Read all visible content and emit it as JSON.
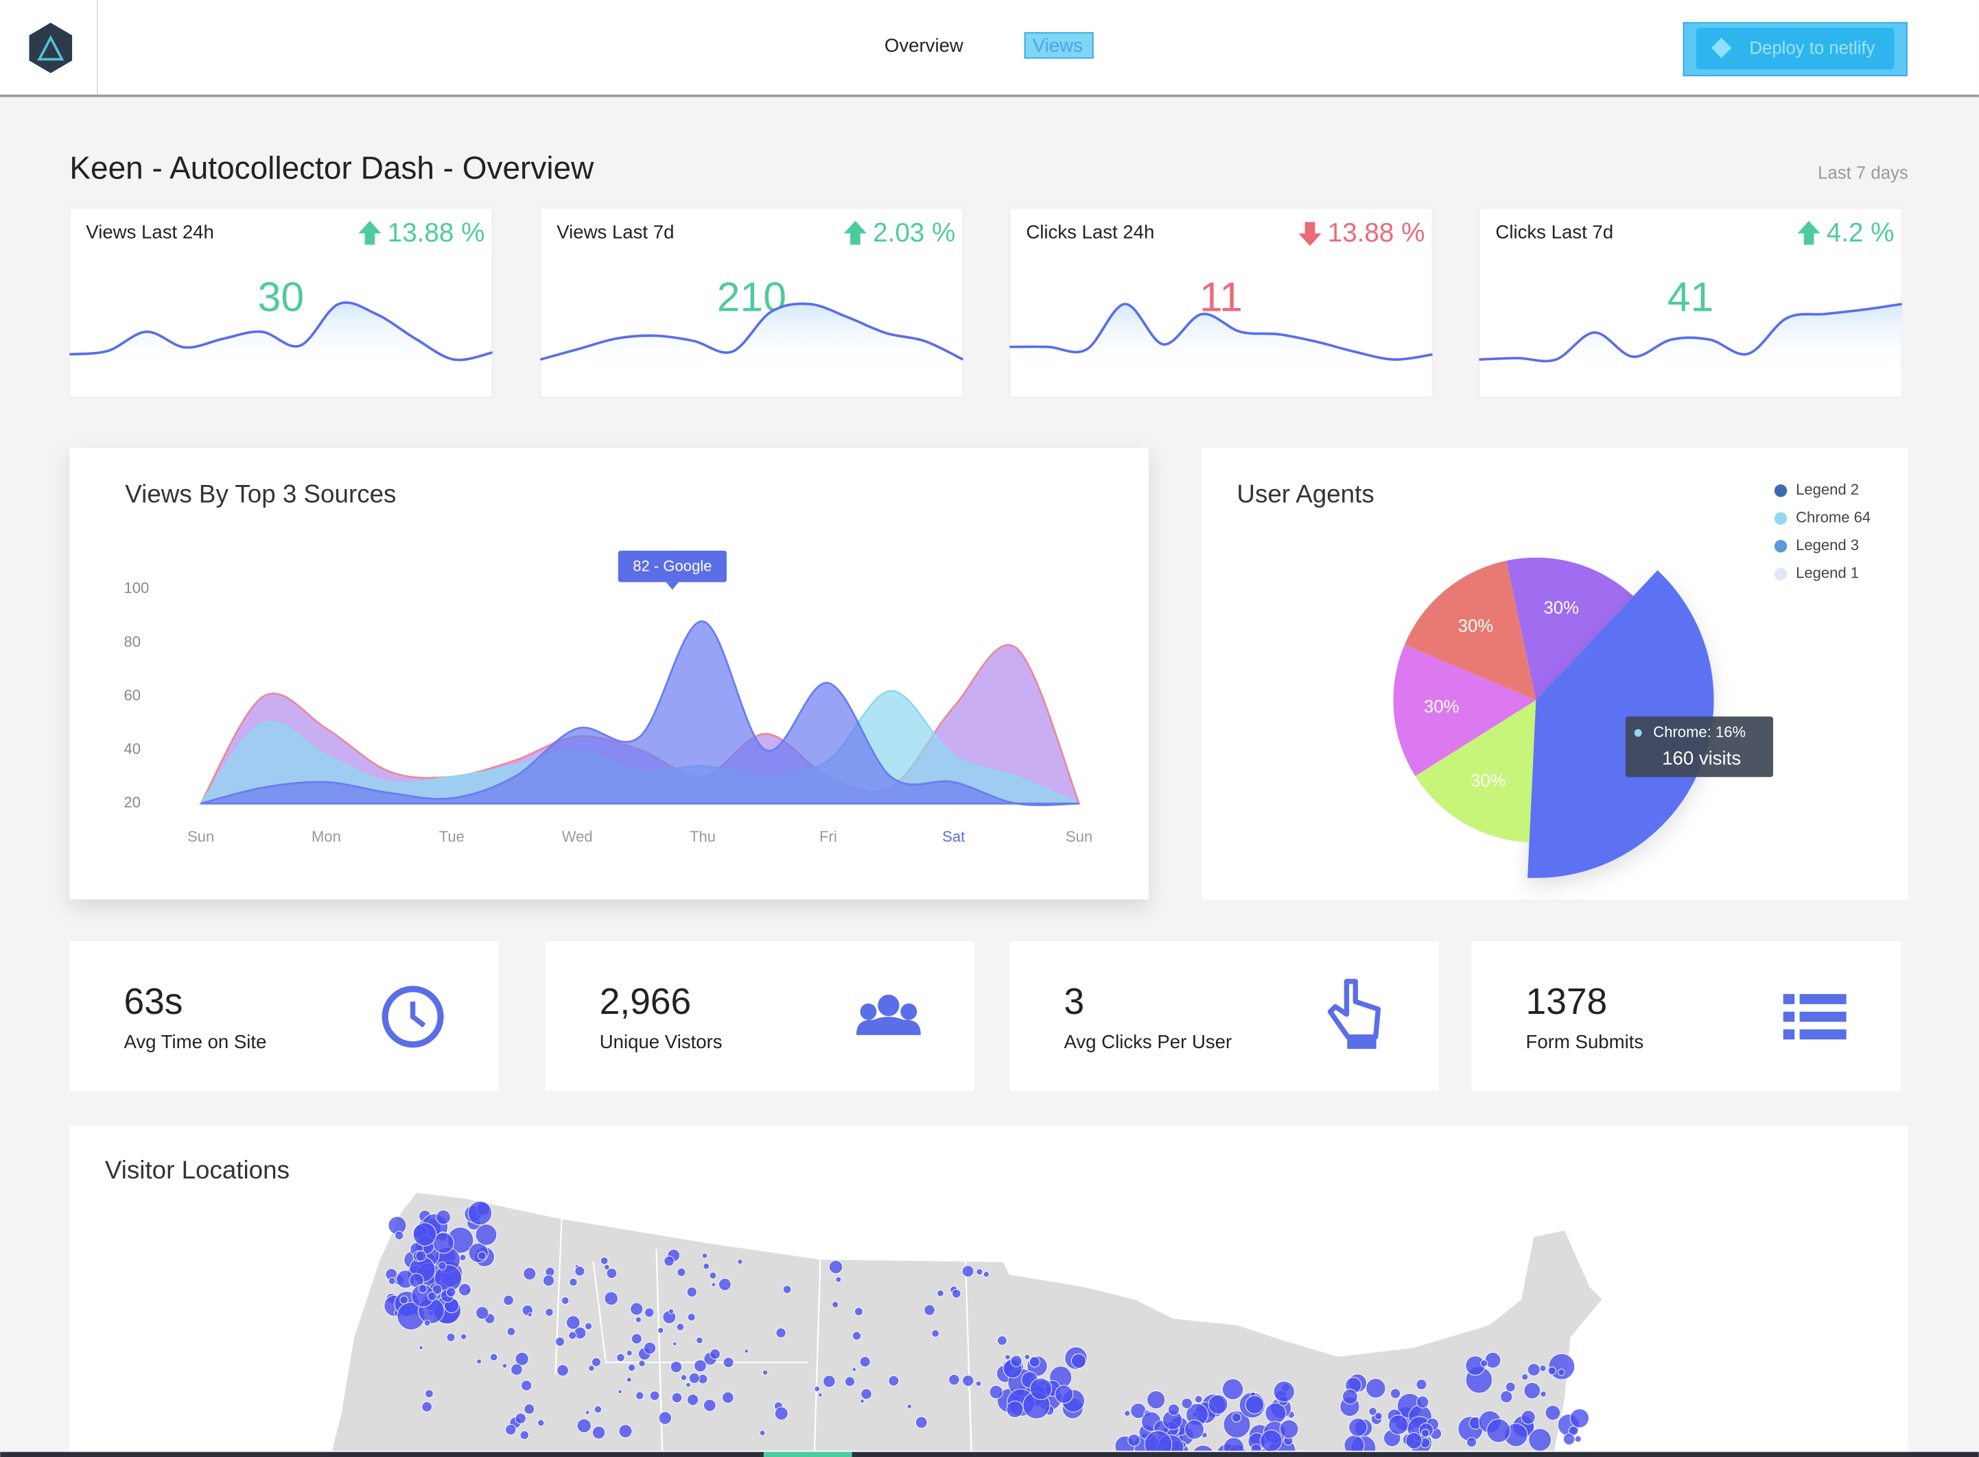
{
  "nav": {
    "links": [
      "Overview",
      "Views"
    ],
    "button": "Deploy to netlify"
  },
  "page": {
    "title": "Keen - Autocollector Dash - Overview",
    "range": "Last 7 days"
  },
  "kpis": [
    {
      "label": "Views Last 24h",
      "change": "13.88 %",
      "direction": "up",
      "value": 30,
      "trend": [
        26,
        30,
        52,
        34,
        44,
        52,
        36,
        84,
        72,
        44,
        20,
        28
      ]
    },
    {
      "label": "Views Last 7d",
      "change": "2.03 %",
      "direction": "up",
      "value": 210,
      "trend": [
        20,
        28,
        36,
        38,
        34,
        26,
        56,
        62,
        52,
        40,
        34,
        20
      ]
    },
    {
      "label": "Clicks Last 24h",
      "change": "13.88 %",
      "direction": "down",
      "value": 11,
      "trend": [
        26,
        26,
        24,
        60,
        28,
        52,
        38,
        36,
        30,
        22,
        16,
        20
      ]
    },
    {
      "label": "Clicks Last 7d",
      "change": "4.2 %",
      "direction": "up",
      "value": 41,
      "trend": [
        22,
        24,
        22,
        60,
        26,
        50,
        50,
        30,
        80,
        86,
        92,
        100
      ]
    }
  ],
  "area_chart": {
    "type": "area",
    "title": "Views By Top 3 Sources",
    "categories": [
      "Sun",
      null,
      "Mon",
      null,
      "Tue",
      null,
      "Wed",
      null,
      "Thu",
      null,
      "Fri",
      null,
      "Sat",
      null,
      "Sun"
    ],
    "ylim": [
      20,
      100
    ],
    "yticks": [
      20,
      40,
      60,
      80,
      100
    ],
    "series": [
      {
        "color": "#b48cf0",
        "values": [
          20,
          60,
          48,
          32,
          30,
          36,
          45,
          40,
          30,
          46,
          30,
          26,
          56,
          78,
          20
        ]
      },
      {
        "color": "#8fd8f0",
        "values": [
          20,
          50,
          38,
          28,
          30,
          34,
          40,
          32,
          34,
          30,
          36,
          62,
          38,
          30,
          20
        ]
      },
      {
        "color": "#6b7cf0",
        "values": [
          20,
          26,
          28,
          24,
          22,
          30,
          48,
          45,
          88,
          40,
          65,
          30,
          28,
          20,
          20
        ]
      }
    ],
    "tooltip": "82 - Google"
  },
  "pie_chart": {
    "type": "pie",
    "title": "User Agents",
    "values": [
      30,
      76,
      30,
      30,
      30
    ],
    "value_labels": [
      "30%",
      null,
      "30%",
      "30%",
      "30%"
    ],
    "colors": [
      "#a06cf0",
      "#5b72f2",
      "#c6f57a",
      "#dc78f0",
      "#e87a73"
    ],
    "legend": [
      {
        "name": "Legend 2",
        "color": "#3a6bb0"
      },
      {
        "name": "Chrome 64",
        "color": "#8fd8f0"
      },
      {
        "name": "Legend 3",
        "color": "#5a9ad8"
      },
      {
        "name": "Legend 1",
        "color": "#dfe9f5"
      }
    ],
    "tooltip": {
      "label": "Chrome: 16%",
      "value": "160 visits"
    }
  },
  "stats": [
    {
      "value": "63s",
      "label": "Avg Time on Site"
    },
    {
      "value": "2,966",
      "label": "Unique Vistors"
    },
    {
      "value": "3",
      "label": "Avg Clicks Per User"
    },
    {
      "value": "1378",
      "label": "Form Submits"
    }
  ],
  "map": {
    "title": "Visitor Locations"
  }
}
